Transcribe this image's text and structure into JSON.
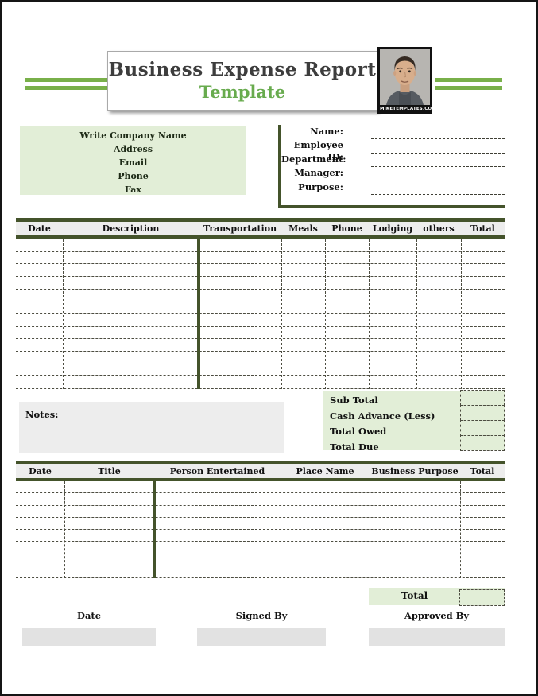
{
  "header": {
    "title_line1": "Business Expense Report",
    "title_line2": "Template",
    "brand": "MIKETEMPLATES.COM"
  },
  "company_box": {
    "lines": [
      "Write Company Name",
      "Address",
      "Email",
      "Phone",
      "Fax"
    ]
  },
  "employee_fields": [
    {
      "label": "Name:"
    },
    {
      "label": "Employee ID:"
    },
    {
      "label": "Department:"
    },
    {
      "label": "Manager:"
    },
    {
      "label": "Purpose:"
    }
  ],
  "expense_table": {
    "columns": [
      "Date",
      "Description",
      "Transportation",
      "Meals",
      "Phone",
      "Lodging",
      "others",
      "Total"
    ],
    "empty_rows": 12
  },
  "notes": {
    "label": "Notes:"
  },
  "summary": {
    "rows": [
      "Sub Total",
      "Cash Advance (Less)",
      "Total Owed",
      "Total Due"
    ]
  },
  "entertainment_table": {
    "columns": [
      "Date",
      "Title",
      "Person Entertained",
      "Place Name",
      "Business Purpose",
      "Total"
    ],
    "empty_rows": 8,
    "total_label": "Total"
  },
  "signature_footer": [
    {
      "label": "Date"
    },
    {
      "label": "Signed By"
    },
    {
      "label": "Approved By"
    }
  ],
  "colors": {
    "accent_green": "#79b04a",
    "dark_green": "#44532b",
    "light_green": "#e2eed7",
    "light_gray": "#ededed",
    "title_dark": "#3d3d3d",
    "title_green": "#68ab4e"
  }
}
